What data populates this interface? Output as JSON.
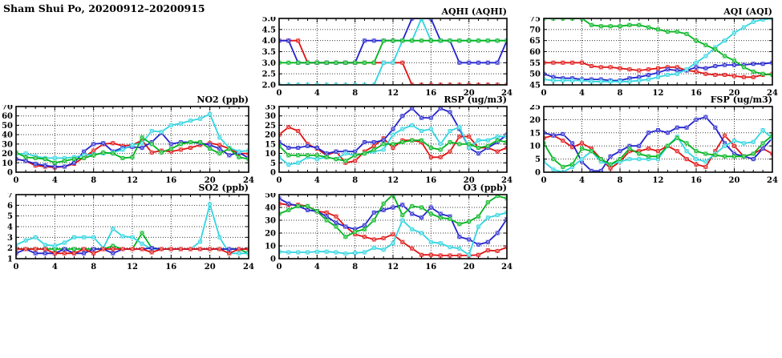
{
  "page_title": "Sham Shui Po, 20200912–20200915",
  "colors": {
    "red": "#e01212",
    "green": "#00b41e",
    "blue": "#2323cd",
    "cyan": "#2fd5e0"
  },
  "x_axis": {
    "min": 0,
    "max": 24,
    "major_step": 4,
    "minor_step": 1,
    "tick_labels": [
      "0",
      "4",
      "8",
      "12",
      "16",
      "20",
      "24"
    ]
  },
  "hours": [
    0,
    1,
    2,
    3,
    4,
    5,
    6,
    7,
    8,
    9,
    10,
    11,
    12,
    13,
    14,
    15,
    16,
    17,
    18,
    19,
    20,
    21,
    22,
    23,
    24
  ],
  "chart_data": [
    {
      "id": "aqhi",
      "type": "line",
      "title": "AQHI (AQHI)",
      "ylim": [
        2,
        5
      ],
      "yticks": [
        2,
        2.5,
        3,
        3.5,
        4,
        4.5,
        5
      ],
      "ytick_labels": [
        "2.0",
        "2.5",
        "3.0",
        "3.5",
        "4.0",
        "4.5",
        "5.0"
      ],
      "series": [
        {
          "name": "red",
          "color": "red",
          "values": [
            4,
            4,
            4,
            3,
            3,
            3,
            3,
            3,
            3,
            3,
            3,
            3,
            3,
            3,
            2,
            2,
            2,
            2,
            2,
            2,
            2,
            2,
            2,
            2,
            2
          ]
        },
        {
          "name": "blue",
          "color": "blue",
          "values": [
            4,
            4,
            3,
            3,
            3,
            3,
            3,
            3,
            3,
            4,
            4,
            4,
            4,
            4,
            5,
            5,
            5,
            4,
            4,
            3,
            3,
            3,
            3,
            3,
            4
          ]
        },
        {
          "name": "cyan",
          "color": "cyan",
          "values": [
            2,
            2,
            2,
            2,
            2,
            2,
            2,
            2,
            2,
            2,
            2,
            3,
            3,
            4,
            4,
            5,
            4,
            4,
            4,
            4,
            4,
            4,
            4,
            4,
            4
          ]
        },
        {
          "name": "green",
          "color": "green",
          "values": [
            3,
            3,
            3,
            3,
            3,
            3,
            3,
            3,
            3,
            3,
            3,
            4,
            4,
            4,
            4,
            4,
            4,
            4,
            4,
            4,
            4,
            4,
            4,
            4,
            4
          ]
        }
      ]
    },
    {
      "id": "aqi",
      "type": "line",
      "title": "AQI (AQI)",
      "ylim": [
        45,
        75
      ],
      "yticks": [
        45,
        50,
        55,
        60,
        65,
        70,
        75
      ],
      "ytick_labels": [
        "45",
        "50",
        "55",
        "60",
        "65",
        "70",
        "75"
      ],
      "series": [
        {
          "name": "red",
          "color": "red",
          "values": [
            55,
            55,
            55,
            55,
            55,
            53.5,
            53,
            53,
            52.5,
            52,
            51.5,
            52,
            52.5,
            53,
            53,
            51.5,
            51,
            50,
            49.5,
            49.5,
            49,
            48.5,
            48.5,
            49.5,
            50
          ]
        },
        {
          "name": "blue",
          "color": "blue",
          "values": [
            50,
            48.5,
            48,
            48,
            47.5,
            47.5,
            47.5,
            47,
            47,
            48,
            48.5,
            49.5,
            50.5,
            52,
            51.5,
            51.5,
            53,
            52.5,
            53.5,
            54,
            54,
            54,
            54.5,
            54.5,
            55
          ]
        },
        {
          "name": "cyan",
          "color": "cyan",
          "values": [
            47.5,
            47,
            47,
            47,
            47,
            46.5,
            46.5,
            46.5,
            46.5,
            46.5,
            47,
            47.5,
            48.5,
            49.5,
            50,
            52,
            55,
            58,
            62,
            65,
            68.5,
            71,
            73.5,
            74.5,
            75
          ]
        },
        {
          "name": "green",
          "color": "green",
          "values": [
            75,
            75,
            75,
            75,
            75,
            72,
            71.5,
            71.5,
            71.5,
            72,
            72,
            71,
            70,
            69,
            69,
            68,
            65,
            63,
            61,
            58,
            56,
            53,
            51,
            50,
            49.5
          ]
        }
      ]
    },
    {
      "id": "no2",
      "type": "line",
      "title": "NO2 (ppb)",
      "ylim": [
        0,
        70
      ],
      "yticks": [
        0,
        10,
        20,
        30,
        40,
        50,
        60,
        70
      ],
      "ytick_labels": [
        "0",
        "10",
        "20",
        "30",
        "40",
        "50",
        "60",
        "70"
      ],
      "series": [
        {
          "name": "red",
          "color": "red",
          "values": [
            14,
            12,
            7,
            6,
            5,
            6,
            9,
            16,
            23,
            30,
            31,
            28,
            29,
            34,
            21,
            23,
            22,
            24,
            26,
            29,
            31,
            29,
            25,
            20,
            20
          ]
        },
        {
          "name": "blue",
          "color": "blue",
          "values": [
            14,
            12,
            9,
            7,
            6,
            6,
            10,
            22,
            30,
            31,
            22,
            26,
            27,
            26,
            32,
            42,
            30,
            32,
            32,
            31,
            29,
            25,
            18,
            21,
            15
          ]
        },
        {
          "name": "cyan",
          "color": "cyan",
          "values": [
            19,
            20,
            17,
            15,
            15,
            15,
            16,
            18,
            19,
            20,
            21,
            24,
            29,
            31,
            44,
            43,
            50,
            52,
            55,
            57,
            62,
            37,
            26,
            22,
            23
          ]
        },
        {
          "name": "green",
          "color": "green",
          "values": [
            21,
            16,
            15,
            14,
            10,
            12,
            14,
            15,
            18,
            21,
            20,
            15,
            16,
            37,
            30,
            21,
            25,
            30,
            32,
            32,
            25,
            20,
            25,
            16,
            14
          ]
        }
      ]
    },
    {
      "id": "rsp",
      "type": "line",
      "title": "RSP (ug/m3)",
      "ylim": [
        0,
        35
      ],
      "yticks": [
        0,
        5,
        10,
        15,
        20,
        25,
        30,
        35
      ],
      "ytick_labels": [
        "0",
        "5",
        "10",
        "15",
        "20",
        "25",
        "30",
        "35"
      ],
      "series": [
        {
          "name": "red",
          "color": "red",
          "values": [
            20,
            24,
            22,
            15,
            12.5,
            9,
            11,
            5,
            6,
            11,
            14,
            18,
            13,
            17,
            17,
            16,
            8,
            8,
            11,
            19,
            19,
            13,
            13,
            11,
            13
          ]
        },
        {
          "name": "blue",
          "color": "blue",
          "values": [
            16,
            13,
            13,
            14,
            13,
            10,
            11,
            11,
            11,
            16,
            16,
            17,
            23,
            30,
            34,
            29,
            29,
            34,
            32,
            23,
            13,
            10,
            13,
            16,
            20
          ]
        },
        {
          "name": "cyan",
          "color": "cyan",
          "values": [
            8,
            4,
            5,
            8,
            7,
            8,
            7,
            10,
            9,
            10,
            11,
            12,
            20,
            23,
            25,
            22,
            23,
            15,
            22,
            24,
            13,
            17,
            17,
            19,
            19
          ]
        },
        {
          "name": "green",
          "color": "green",
          "values": [
            14,
            9,
            9,
            9,
            9,
            8,
            7,
            6,
            9,
            10,
            12,
            15,
            15,
            16,
            17,
            17,
            13,
            12,
            16,
            15,
            15,
            13,
            14,
            17,
            16
          ]
        }
      ]
    },
    {
      "id": "fsp",
      "type": "line",
      "title": "FSP (ug/m3)",
      "ylim": [
        0,
        25
      ],
      "yticks": [
        0,
        5,
        10,
        15,
        20,
        25
      ],
      "ytick_labels": [
        "0",
        "5",
        "10",
        "15",
        "20",
        "25"
      ],
      "series": [
        {
          "name": "red",
          "color": "red",
          "values": [
            13,
            14,
            12,
            9.5,
            11,
            9,
            5,
            1.5,
            4,
            8,
            8,
            9,
            8,
            10,
            8,
            5,
            3,
            2,
            8,
            14,
            10,
            6,
            7,
            9,
            7
          ]
        },
        {
          "name": "blue",
          "color": "blue",
          "values": [
            15,
            14,
            14.5,
            11,
            4,
            0.5,
            0.5,
            6,
            8,
            10,
            10,
            15,
            16,
            15,
            17,
            17,
            20,
            21,
            17,
            11,
            7,
            6,
            5,
            9,
            13
          ]
        },
        {
          "name": "cyan",
          "color": "cyan",
          "values": [
            4,
            1,
            0,
            2,
            5,
            8,
            4,
            3,
            4,
            5,
            5,
            5,
            5,
            10,
            13.5,
            8,
            5,
            4,
            7,
            10,
            12,
            11,
            11.5,
            16,
            13
          ]
        },
        {
          "name": "green",
          "color": "green",
          "values": [
            11,
            5,
            2,
            3,
            9,
            8,
            5,
            3,
            5,
            9,
            7,
            6,
            6,
            10,
            13,
            11,
            8,
            7,
            6.5,
            6,
            6,
            6,
            7,
            11,
            14
          ]
        }
      ]
    },
    {
      "id": "so2",
      "type": "line",
      "title": "SO2 (ppb)",
      "ylim": [
        1,
        7
      ],
      "yticks": [
        1,
        2,
        3,
        4,
        5,
        6,
        7
      ],
      "ytick_labels": [
        "1",
        "2",
        "3",
        "4",
        "5",
        "6",
        "7"
      ],
      "series": [
        {
          "name": "green",
          "color": "green",
          "values": [
            1.9,
            1.9,
            1.9,
            1.9,
            1.9,
            1.9,
            1.9,
            1.9,
            1.9,
            1.9,
            2.2,
            1.9,
            1.9,
            3.4,
            2,
            1.9,
            1.9,
            1.9,
            1.9,
            1.9,
            1.9,
            1.9,
            1.9,
            1.9,
            1.5
          ]
        },
        {
          "name": "cyan",
          "color": "cyan",
          "values": [
            2.3,
            2.7,
            3,
            2.3,
            2.2,
            2.5,
            3,
            3,
            3,
            2,
            3.8,
            3.1,
            3,
            2.4,
            1.9,
            1.9,
            1.9,
            1.9,
            1.9,
            2.6,
            6.1,
            3,
            1.5,
            1.5,
            1.5
          ]
        },
        {
          "name": "blue",
          "color": "blue",
          "values": [
            1.5,
            1.9,
            1.5,
            1.5,
            1.5,
            1.9,
            1.5,
            1.5,
            1.9,
            1.9,
            1.5,
            1.9,
            1.9,
            1.9,
            2,
            1.9,
            1.9,
            1.9,
            1.9,
            1.9,
            1.9,
            1.9,
            1.9,
            1.9,
            1.9
          ]
        },
        {
          "name": "red",
          "color": "red",
          "values": [
            1.9,
            1.9,
            1.9,
            1.9,
            1.5,
            1.5,
            1.5,
            1.9,
            1.5,
            1.9,
            1.9,
            1.9,
            1.9,
            1.9,
            1.6,
            1.9,
            1.9,
            1.9,
            1.9,
            1.9,
            1.9,
            1.9,
            1.5,
            1.9,
            1.9
          ]
        }
      ]
    },
    {
      "id": "o3",
      "type": "line",
      "title": "O3 (ppb)",
      "ylim": [
        0,
        50
      ],
      "yticks": [
        0,
        10,
        20,
        30,
        40,
        50
      ],
      "ytick_labels": [
        "0",
        "10",
        "20",
        "30",
        "40",
        "50"
      ],
      "series": [
        {
          "name": "red",
          "color": "red",
          "values": [
            43,
            42,
            42,
            41,
            37,
            36,
            33,
            25,
            19,
            17,
            15,
            16,
            19,
            13,
            8,
            3,
            3,
            2.5,
            2.5,
            2.5,
            2.5,
            3,
            6.5,
            6,
            9
          ]
        },
        {
          "name": "blue",
          "color": "blue",
          "values": [
            47,
            43,
            41,
            38,
            37,
            33,
            28,
            25,
            23,
            26,
            36,
            38,
            40,
            42,
            35,
            32,
            40,
            35,
            33,
            17,
            15,
            11,
            13,
            20,
            31
          ]
        },
        {
          "name": "cyan",
          "color": "cyan",
          "values": [
            5.5,
            5,
            5,
            5,
            5.5,
            5.5,
            5,
            4,
            4.5,
            5,
            8.5,
            7,
            12,
            30,
            23,
            20,
            13,
            12,
            9,
            8,
            3,
            25,
            32,
            34,
            36
          ]
        },
        {
          "name": "green",
          "color": "green",
          "values": [
            35,
            38,
            41,
            41,
            37,
            30,
            25,
            17,
            21,
            23,
            30,
            43,
            50,
            34,
            41,
            40,
            35,
            32,
            31,
            27,
            29,
            33,
            44,
            49,
            47
          ]
        }
      ]
    }
  ]
}
